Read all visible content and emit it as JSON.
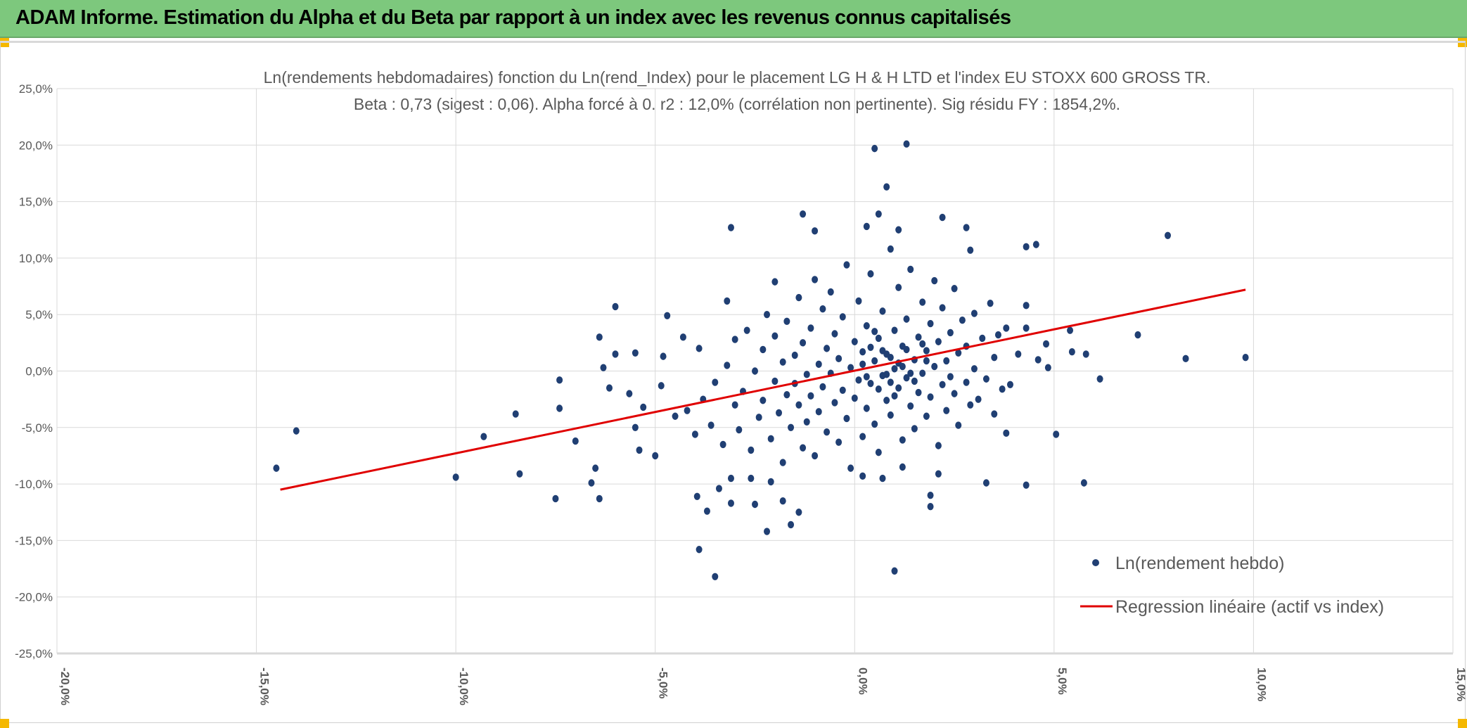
{
  "header": {
    "title": "ADAM Informe. Estimation du Alpha et du Beta par rapport à un index avec les revenus connus capitalisés"
  },
  "colors": {
    "header_bg": "#7dc87d",
    "points": "#203f73",
    "regression": "#e00000",
    "handles": "#f5b800"
  },
  "chart_data": {
    "type": "scatter",
    "title": "Ln(rendements hebdomadaires) fonction du Ln(rend_Index) pour le placement LG H & H LTD et l'index EU STOXX 600 GROSS TR.",
    "subtitle": "Beta : 0,73 (sigest : 0,06). Alpha forcé à 0. r2 : 12,0% (corrélation non pertinente). Sig résidu FY : 1854,2%.",
    "xlim": [
      -20,
      15
    ],
    "ylim": [
      -25,
      25
    ],
    "x_ticks": [
      "-20,0%",
      "-15,0%",
      "-10,0%",
      "-5,0%",
      "0,0%",
      "5,0%",
      "10,0%",
      "15,0%"
    ],
    "y_ticks": [
      "25,0%",
      "20,0%",
      "15,0%",
      "10,0%",
      "5,0%",
      "0,0%",
      "-5,0%",
      "-10,0%",
      "-15,0%",
      "-20,0%",
      "-25,0%"
    ],
    "grid": true,
    "legend_placement": "bottom-right",
    "series": [
      {
        "name": "Ln(rendement hebdo)",
        "type": "scatter",
        "points": [
          [
            -14.5,
            -8.6
          ],
          [
            -14.0,
            -5.3
          ],
          [
            -10.0,
            -9.4
          ],
          [
            -9.3,
            -5.8
          ],
          [
            -8.5,
            -3.8
          ],
          [
            -8.4,
            -9.1
          ],
          [
            -7.5,
            -11.3
          ],
          [
            -7.4,
            -0.8
          ],
          [
            -7.4,
            -3.3
          ],
          [
            -7.0,
            -6.2
          ],
          [
            -6.6,
            -9.9
          ],
          [
            -6.5,
            -8.6
          ],
          [
            -6.4,
            -11.3
          ],
          [
            -6.4,
            3.0
          ],
          [
            -6.0,
            5.7
          ],
          [
            -6.0,
            1.5
          ],
          [
            -6.3,
            0.3
          ],
          [
            -6.15,
            -1.5
          ],
          [
            -5.65,
            -2.0
          ],
          [
            -5.5,
            -5.0
          ],
          [
            -5.5,
            1.6
          ],
          [
            -5.4,
            -7.0
          ],
          [
            -5.3,
            -3.2
          ],
          [
            -5.0,
            -7.5
          ],
          [
            -4.85,
            -1.3
          ],
          [
            -4.8,
            1.3
          ],
          [
            -4.7,
            4.9
          ],
          [
            -4.3,
            3.0
          ],
          [
            -3.9,
            2.0
          ],
          [
            -3.9,
            -15.8
          ],
          [
            -3.95,
            -11.1
          ],
          [
            -3.7,
            -12.4
          ],
          [
            -3.5,
            -18.2
          ],
          [
            -3.4,
            -10.4
          ],
          [
            -3.2,
            6.2
          ],
          [
            -3.1,
            -9.5
          ],
          [
            -3.1,
            -11.7
          ],
          [
            -3.1,
            12.7
          ],
          [
            -2.6,
            -9.5
          ],
          [
            -2.5,
            -11.8
          ],
          [
            -2.2,
            -14.2
          ],
          [
            -2.1,
            -9.8
          ],
          [
            -2.0,
            7.9
          ],
          [
            -1.8,
            -11.5
          ],
          [
            -1.6,
            -13.6
          ],
          [
            -1.4,
            -12.5
          ],
          [
            -1.3,
            13.9
          ],
          [
            -1.0,
            12.4
          ],
          [
            0.2,
            -9.3
          ],
          [
            0.3,
            12.8
          ],
          [
            0.5,
            19.7
          ],
          [
            0.7,
            -9.5
          ],
          [
            0.8,
            16.3
          ],
          [
            1.3,
            20.1
          ],
          [
            1.0,
            -17.7
          ],
          [
            1.1,
            12.5
          ],
          [
            0.6,
            13.9
          ],
          [
            1.2,
            -8.5
          ],
          [
            1.9,
            -12.0
          ],
          [
            1.9,
            -11.0
          ],
          [
            2.1,
            -9.1
          ],
          [
            2.8,
            12.7
          ],
          [
            2.9,
            10.7
          ],
          [
            2.2,
            13.6
          ],
          [
            3.3,
            -9.9
          ],
          [
            3.8,
            -5.5
          ],
          [
            4.3,
            -10.1
          ],
          [
            4.3,
            5.8
          ],
          [
            4.3,
            11.0
          ],
          [
            4.55,
            11.2
          ],
          [
            5.05,
            -5.6
          ],
          [
            5.4,
            3.6
          ],
          [
            5.45,
            1.7
          ],
          [
            5.75,
            -9.9
          ],
          [
            5.8,
            1.5
          ],
          [
            6.15,
            -0.7
          ],
          [
            7.1,
            3.2
          ],
          [
            7.85,
            12.0
          ],
          [
            8.3,
            1.1
          ],
          [
            9.8,
            1.2
          ],
          [
            4.3,
            3.8
          ],
          [
            4.8,
            2.4
          ],
          [
            4.6,
            1.0
          ],
          [
            4.85,
            0.3
          ],
          [
            4.1,
            1.5
          ],
          [
            3.8,
            3.8
          ],
          [
            3.9,
            -1.2
          ],
          [
            -4.5,
            -4.0
          ],
          [
            -4.2,
            -3.5
          ],
          [
            -4.0,
            -5.6
          ],
          [
            -3.8,
            -2.5
          ],
          [
            -3.6,
            -4.8
          ],
          [
            -3.5,
            -1.0
          ],
          [
            -3.3,
            -6.5
          ],
          [
            -3.2,
            0.5
          ],
          [
            -3.0,
            -3.0
          ],
          [
            -3.0,
            2.8
          ],
          [
            -2.9,
            -5.2
          ],
          [
            -2.8,
            -1.8
          ],
          [
            -2.7,
            3.6
          ],
          [
            -2.6,
            -7.0
          ],
          [
            -2.5,
            0.0
          ],
          [
            -2.4,
            -4.1
          ],
          [
            -2.3,
            1.9
          ],
          [
            -2.3,
            -2.6
          ],
          [
            -2.2,
            5.0
          ],
          [
            -2.1,
            -6.0
          ],
          [
            -2.0,
            -0.9
          ],
          [
            -2.0,
            3.1
          ],
          [
            -1.9,
            -3.7
          ],
          [
            -1.8,
            0.8
          ],
          [
            -1.8,
            -8.1
          ],
          [
            -1.7,
            -2.1
          ],
          [
            -1.7,
            4.4
          ],
          [
            -1.6,
            -5.0
          ],
          [
            -1.5,
            1.4
          ],
          [
            -1.5,
            -1.1
          ],
          [
            -1.4,
            6.5
          ],
          [
            -1.4,
            -3.0
          ],
          [
            -1.3,
            -6.8
          ],
          [
            -1.3,
            2.5
          ],
          [
            -1.2,
            -0.3
          ],
          [
            -1.2,
            -4.5
          ],
          [
            -1.1,
            3.8
          ],
          [
            -1.1,
            -2.2
          ],
          [
            -1.0,
            8.1
          ],
          [
            -1.0,
            -7.5
          ],
          [
            -0.9,
            0.6
          ],
          [
            -0.9,
            -3.6
          ],
          [
            -0.8,
            5.5
          ],
          [
            -0.8,
            -1.4
          ],
          [
            -0.7,
            2.0
          ],
          [
            -0.7,
            -5.4
          ],
          [
            -0.6,
            -0.2
          ],
          [
            -0.6,
            7.0
          ],
          [
            -0.5,
            -2.8
          ],
          [
            -0.5,
            3.3
          ],
          [
            -0.4,
            -6.3
          ],
          [
            -0.4,
            1.1
          ],
          [
            -0.3,
            -1.7
          ],
          [
            -0.3,
            4.8
          ],
          [
            -0.2,
            -4.2
          ],
          [
            -0.2,
            9.4
          ],
          [
            -0.1,
            0.3
          ],
          [
            -0.1,
            -8.6
          ],
          [
            0.0,
            2.6
          ],
          [
            0.0,
            -2.4
          ],
          [
            0.1,
            6.2
          ],
          [
            0.1,
            -0.8
          ],
          [
            0.2,
            -5.8
          ],
          [
            0.2,
            1.7
          ],
          [
            0.3,
            -3.3
          ],
          [
            0.3,
            4.0
          ],
          [
            0.4,
            -1.1
          ],
          [
            0.4,
            8.6
          ],
          [
            0.5,
            0.9
          ],
          [
            0.5,
            -4.7
          ],
          [
            0.6,
            2.9
          ],
          [
            0.6,
            -7.2
          ],
          [
            0.7,
            -0.4
          ],
          [
            0.7,
            5.3
          ],
          [
            0.8,
            -2.6
          ],
          [
            0.8,
            1.5
          ],
          [
            0.9,
            10.8
          ],
          [
            0.9,
            -3.9
          ],
          [
            1.0,
            0.2
          ],
          [
            1.0,
            3.6
          ],
          [
            1.1,
            -1.5
          ],
          [
            1.1,
            7.4
          ],
          [
            1.2,
            -6.1
          ],
          [
            1.2,
            2.2
          ],
          [
            1.3,
            -0.6
          ],
          [
            1.3,
            4.6
          ],
          [
            1.4,
            -3.1
          ],
          [
            1.4,
            9.0
          ],
          [
            1.5,
            1.0
          ],
          [
            1.5,
            -5.1
          ],
          [
            1.6,
            -1.9
          ],
          [
            1.6,
            3.0
          ],
          [
            1.7,
            6.1
          ],
          [
            1.7,
            -0.2
          ],
          [
            1.8,
            -4.0
          ],
          [
            1.8,
            1.8
          ],
          [
            1.9,
            -2.3
          ],
          [
            1.9,
            4.2
          ],
          [
            2.0,
            8.0
          ],
          [
            2.0,
            0.4
          ],
          [
            2.1,
            -6.6
          ],
          [
            2.1,
            2.6
          ],
          [
            2.2,
            -1.2
          ],
          [
            2.2,
            5.6
          ],
          [
            2.3,
            -3.5
          ],
          [
            2.3,
            0.9
          ],
          [
            2.4,
            3.4
          ],
          [
            2.4,
            -0.5
          ],
          [
            2.5,
            7.3
          ],
          [
            2.5,
            -2.0
          ],
          [
            2.6,
            1.6
          ],
          [
            2.6,
            -4.8
          ],
          [
            2.7,
            4.5
          ],
          [
            2.8,
            -1.0
          ],
          [
            2.8,
            2.2
          ],
          [
            2.9,
            -3.0
          ],
          [
            3.0,
            5.1
          ],
          [
            3.0,
            0.2
          ],
          [
            3.1,
            -2.5
          ],
          [
            3.2,
            2.9
          ],
          [
            3.3,
            -0.7
          ],
          [
            3.4,
            6.0
          ],
          [
            3.5,
            1.2
          ],
          [
            3.5,
            -3.8
          ],
          [
            3.6,
            3.2
          ],
          [
            3.7,
            -1.6
          ],
          [
            0.9,
            1.2
          ],
          [
            1.1,
            0.7
          ],
          [
            0.6,
            -1.6
          ],
          [
            0.4,
            2.1
          ],
          [
            1.3,
            1.9
          ],
          [
            0.8,
            -0.3
          ],
          [
            1.5,
            -0.9
          ],
          [
            0.2,
            0.6
          ],
          [
            1.7,
            2.4
          ],
          [
            0.5,
            3.5
          ],
          [
            1.0,
            -2.2
          ],
          [
            1.2,
            0.4
          ],
          [
            0.7,
            1.8
          ],
          [
            1.4,
            -0.2
          ],
          [
            0.3,
            -0.5
          ],
          [
            1.8,
            0.9
          ],
          [
            0.9,
            -1.0
          ]
        ]
      },
      {
        "name": "Regression linéaire (actif vs index)",
        "type": "line",
        "points": [
          [
            -14.4,
            -10.5
          ],
          [
            9.8,
            7.2
          ]
        ]
      }
    ]
  }
}
